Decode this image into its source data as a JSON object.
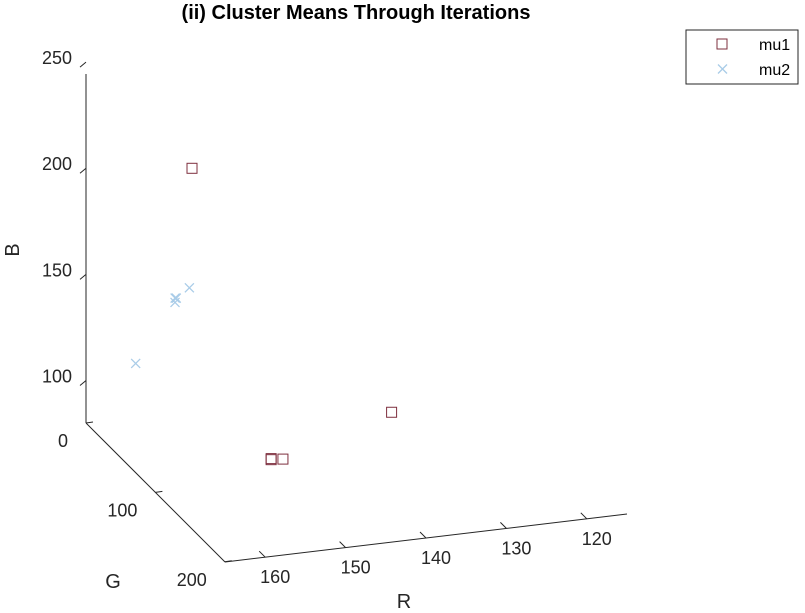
{
  "chart_data": {
    "type": "scatter",
    "title": "(ii) Cluster Means Through Iterations",
    "xlabel": "R",
    "ylabel": "G",
    "zlabel": "B",
    "xlim": [
      115,
      165
    ],
    "ylim": [
      0,
      200
    ],
    "zlim": [
      80,
      250
    ],
    "x_ticks": [
      "120",
      "130",
      "140",
      "150",
      "160"
    ],
    "y_ticks": [
      "0",
      "100",
      "200"
    ],
    "z_ticks": [
      "100",
      "150",
      "200",
      "250"
    ],
    "legend_position": "top-right",
    "series": [
      {
        "name": "mu1",
        "marker": "square",
        "color": "#7E2F3E",
        "points": [
          {
            "R": 129.9,
            "G": 33.7,
            "B": 80.2
          },
          {
            "R": 156.2,
            "G": 50.8,
            "B": 212.6
          },
          {
            "R": 149.0,
            "G": 81.4,
            "B": 82.6
          },
          {
            "R": 149.0,
            "G": 81.4,
            "B": 82.1
          },
          {
            "R": 147.6,
            "G": 82.2,
            "B": 82.0
          }
        ]
      },
      {
        "name": "mu2",
        "marker": "x",
        "color": "#A9CCE8",
        "points": [
          {
            "R": 162.3,
            "G": 40.3,
            "B": 120.0
          },
          {
            "R": 156.5,
            "G": 29.8,
            "B": 142.7
          },
          {
            "R": 156.6,
            "G": 31.1,
            "B": 145.2
          },
          {
            "R": 156.5,
            "G": 31.6,
            "B": 145.3
          },
          {
            "R": 154.6,
            "G": 28.5,
            "B": 148.3
          }
        ]
      }
    ]
  }
}
